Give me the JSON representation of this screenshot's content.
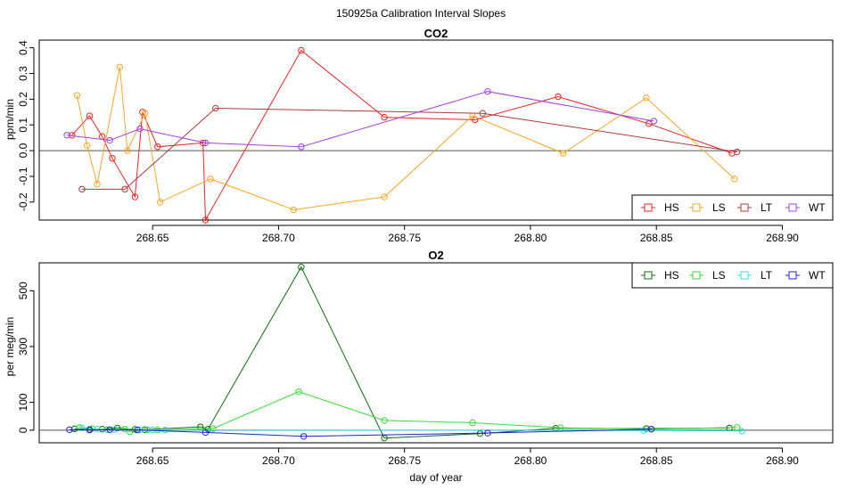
{
  "figure_title": "150925a   Calibration Interval Slopes",
  "x_axis_label": "day of year",
  "colors": {
    "HS_co2": "#ee2222",
    "LS_co2": "#f5a623",
    "LT_co2": "#b03a3a",
    "WT_co2": "#a040e0",
    "HS_o2": "#0a6e0a",
    "LS_o2": "#33dd33",
    "LT_o2": "#33dddd",
    "WT_o2": "#2222cc"
  },
  "chart_data": [
    {
      "type": "line",
      "title": "CO2",
      "xlabel": "",
      "ylabel": "ppm/min",
      "xlim": [
        268.605,
        268.92
      ],
      "ylim": [
        -0.27,
        0.43
      ],
      "x_ticks": [
        "268.65",
        "268.70",
        "268.75",
        "268.80",
        "268.85",
        "268.90"
      ],
      "y_ticks": [
        "-0.2",
        "-0.1",
        "0.0",
        "0.1",
        "0.2",
        "0.3",
        "0.4"
      ],
      "y_tick_values": [
        -0.2,
        -0.1,
        0.0,
        0.1,
        0.2,
        0.3,
        0.4
      ],
      "hline": 0,
      "legend": {
        "placement": "bottom-right",
        "entries": [
          "HS",
          "LS",
          "LT",
          "WT"
        ]
      },
      "series": [
        {
          "name": "HS",
          "color": "#ee2222",
          "points": [
            [
              268.618,
              0.06
            ],
            [
              268.625,
              0.135
            ],
            [
              268.63,
              0.055
            ],
            [
              268.634,
              -0.03
            ],
            [
              268.643,
              -0.18
            ],
            [
              268.646,
              0.15
            ],
            [
              268.652,
              0.015
            ],
            [
              268.67,
              0.03
            ],
            [
              268.671,
              -0.27
            ],
            [
              268.709,
              0.39
            ],
            [
              268.742,
              0.13
            ],
            [
              268.778,
              0.12
            ],
            [
              268.811,
              0.21
            ],
            [
              268.847,
              0.105
            ],
            [
              268.88,
              -0.01
            ]
          ]
        },
        {
          "name": "LS",
          "color": "#f5a623",
          "points": [
            [
              268.62,
              0.215
            ],
            [
              268.624,
              0.02
            ],
            [
              268.628,
              -0.13
            ],
            [
              268.637,
              0.325
            ],
            [
              268.64,
              0.0
            ],
            [
              268.647,
              0.145
            ],
            [
              268.653,
              -0.2
            ],
            [
              268.673,
              -0.11
            ],
            [
              268.706,
              -0.23
            ],
            [
              268.742,
              -0.18
            ],
            [
              268.777,
              0.135
            ],
            [
              268.813,
              -0.01
            ],
            [
              268.846,
              0.205
            ],
            [
              268.881,
              -0.11
            ]
          ]
        },
        {
          "name": "LT",
          "color": "#b03a3a",
          "points": [
            [
              268.622,
              -0.15
            ],
            [
              268.639,
              -0.15
            ],
            [
              268.675,
              0.165
            ],
            [
              268.781,
              0.145
            ],
            [
              268.882,
              -0.005
            ]
          ]
        },
        {
          "name": "WT",
          "color": "#a040e0",
          "points": [
            [
              268.616,
              0.06
            ],
            [
              268.633,
              0.04
            ],
            [
              268.645,
              0.085
            ],
            [
              268.671,
              0.03
            ],
            [
              268.709,
              0.015
            ],
            [
              268.783,
              0.23
            ],
            [
              268.849,
              0.115
            ]
          ]
        }
      ]
    },
    {
      "type": "line",
      "title": "O2",
      "xlabel": "day of year",
      "ylabel": "per meg/min",
      "xlim": [
        268.605,
        268.92
      ],
      "ylim": [
        -45,
        600
      ],
      "x_ticks": [
        "268.65",
        "268.70",
        "268.75",
        "268.80",
        "268.85",
        "268.90"
      ],
      "y_ticks": [
        "0",
        "100",
        "300",
        "500"
      ],
      "y_tick_values": [
        0,
        100,
        300,
        500
      ],
      "hline": 0,
      "legend": {
        "placement": "top-right",
        "entries": [
          "HS",
          "LS",
          "LT",
          "WT"
        ]
      },
      "series": [
        {
          "name": "HS",
          "color": "#0a6e0a",
          "points": [
            [
              268.619,
              5
            ],
            [
              268.625,
              3
            ],
            [
              268.63,
              4
            ],
            [
              268.636,
              8
            ],
            [
              268.643,
              3
            ],
            [
              268.647,
              2
            ],
            [
              268.669,
              12
            ],
            [
              268.672,
              4
            ],
            [
              268.709,
              585
            ],
            [
              268.742,
              -28
            ],
            [
              268.78,
              -12
            ],
            [
              268.81,
              7
            ],
            [
              268.846,
              6
            ],
            [
              268.879,
              8
            ]
          ]
        },
        {
          "name": "LS",
          "color": "#33dd33",
          "points": [
            [
              268.621,
              10
            ],
            [
              268.626,
              6
            ],
            [
              268.632,
              2
            ],
            [
              268.639,
              4
            ],
            [
              268.641,
              -5
            ],
            [
              268.648,
              2
            ],
            [
              268.652,
              1
            ],
            [
              268.674,
              6
            ],
            [
              268.708,
              138
            ],
            [
              268.742,
              35
            ],
            [
              268.777,
              27
            ],
            [
              268.812,
              9
            ],
            [
              268.848,
              4
            ],
            [
              268.882,
              10
            ]
          ]
        },
        {
          "name": "LT",
          "color": "#33dddd",
          "points": [
            [
              268.622,
              8
            ],
            [
              268.628,
              4
            ],
            [
              268.635,
              3
            ],
            [
              268.645,
              2
            ],
            [
              268.65,
              1
            ],
            [
              268.655,
              1
            ],
            [
              268.845,
              -1
            ],
            [
              268.884,
              -3
            ]
          ]
        },
        {
          "name": "WT",
          "color": "#2222cc",
          "points": [
            [
              268.617,
              2
            ],
            [
              268.625,
              1
            ],
            [
              268.633,
              2
            ],
            [
              268.644,
              1
            ],
            [
              268.671,
              -8
            ],
            [
              268.71,
              -22
            ],
            [
              268.783,
              -10
            ],
            [
              268.848,
              4
            ]
          ]
        }
      ]
    }
  ]
}
